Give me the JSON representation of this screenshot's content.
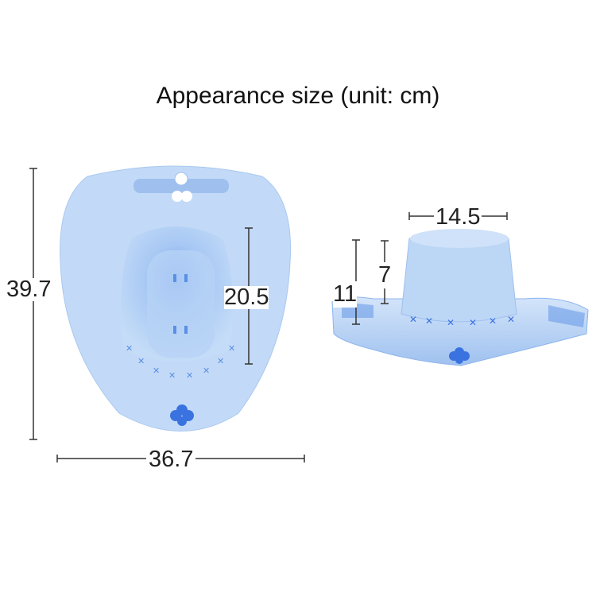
{
  "title": "Appearance size (unit: cm)",
  "dimensions": {
    "height": "39.7",
    "inner_length": "20.5",
    "width": "36.7",
    "top_diameter": "14.5",
    "total_height": "11",
    "bowl_height": "7"
  },
  "colors": {
    "product": "#a9ccf3",
    "accent": "#3a72e0",
    "dimension_line": "#333333"
  }
}
